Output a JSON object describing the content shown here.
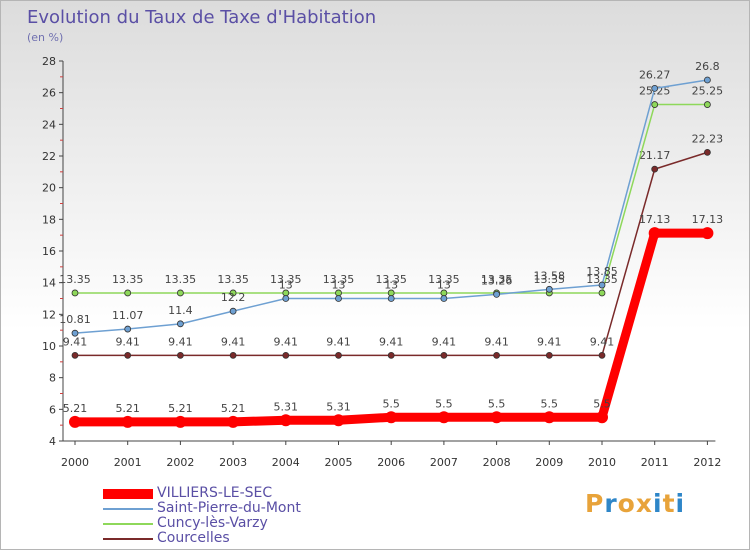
{
  "header": {
    "title": "Evolution du Taux de Taxe d'Habitation",
    "unit": "(en %)"
  },
  "logo": {
    "text": "Proxiti",
    "letters": [
      "P",
      "r",
      "o",
      "x",
      "i",
      "t",
      "i"
    ],
    "colors": [
      "#e8a33a",
      "#2e86c8",
      "#e8a33a",
      "#e8a33a",
      "#2e86c8",
      "#e8a33a",
      "#2e86c8"
    ]
  },
  "chart_data": {
    "type": "line",
    "title": "Evolution du Taux de Taxe d'Habitation",
    "ylabel": "(en %)",
    "xlabel": "",
    "x": [
      "2000",
      "2001",
      "2002",
      "2003",
      "2004",
      "2005",
      "2006",
      "2007",
      "2008",
      "2009",
      "2010",
      "2011",
      "2012"
    ],
    "ylim": [
      4,
      28
    ],
    "yticks": [
      "4",
      "6",
      "8",
      "10",
      "12",
      "14",
      "16",
      "18",
      "20",
      "22",
      "24",
      "26",
      "28"
    ],
    "grid": false,
    "legend": "bottom-left",
    "series": [
      {
        "name": "VILLIERS-LE-SEC",
        "color": "#ff0000",
        "values": [
          5.21,
          5.21,
          5.21,
          5.21,
          5.31,
          5.31,
          5.5,
          5.5,
          5.5,
          5.5,
          5.5,
          17.13,
          17.13
        ],
        "labels": [
          "5.21",
          "5.21",
          "5.21",
          "5.21",
          "5.31",
          "5.31",
          "5.5",
          "5.5",
          "5.5",
          "5.5",
          "5.5",
          "17.13",
          "17.13"
        ]
      },
      {
        "name": "Saint-Pierre-du-Mont",
        "color": "#6ea0d2",
        "values": [
          10.81,
          11.07,
          11.4,
          12.2,
          13,
          13,
          13,
          13,
          13.26,
          13.58,
          13.85,
          26.27,
          26.8
        ],
        "labels": [
          "10.81",
          "11.07",
          "11.4",
          "12.2",
          "13",
          "13",
          "13",
          "13",
          "13.26",
          "13.58",
          "13.85",
          "26.27",
          "26.8"
        ]
      },
      {
        "name": "Cuncy-lès-Varzy",
        "color": "#8ed85a",
        "values": [
          13.35,
          13.35,
          13.35,
          13.35,
          13.35,
          13.35,
          13.35,
          13.35,
          13.35,
          13.35,
          13.35,
          25.25,
          25.25
        ],
        "labels": [
          "13.35",
          "13.35",
          "13.35",
          "13.35",
          "13.35",
          "13.35",
          "13.35",
          "13.35",
          "13.35",
          "13.35",
          "13.35",
          "25.25",
          "25.25"
        ]
      },
      {
        "name": "Courcelles",
        "color": "#7a2a2a",
        "values": [
          9.41,
          9.41,
          9.41,
          9.41,
          9.41,
          9.41,
          9.41,
          9.41,
          9.41,
          9.41,
          9.41,
          21.17,
          22.23
        ],
        "labels": [
          "9.41",
          "9.41",
          "9.41",
          "9.41",
          "9.41",
          "9.41",
          "9.41",
          "9.41",
          "9.41",
          "9.41",
          "9.41",
          "21.17",
          "22.23"
        ]
      }
    ]
  }
}
